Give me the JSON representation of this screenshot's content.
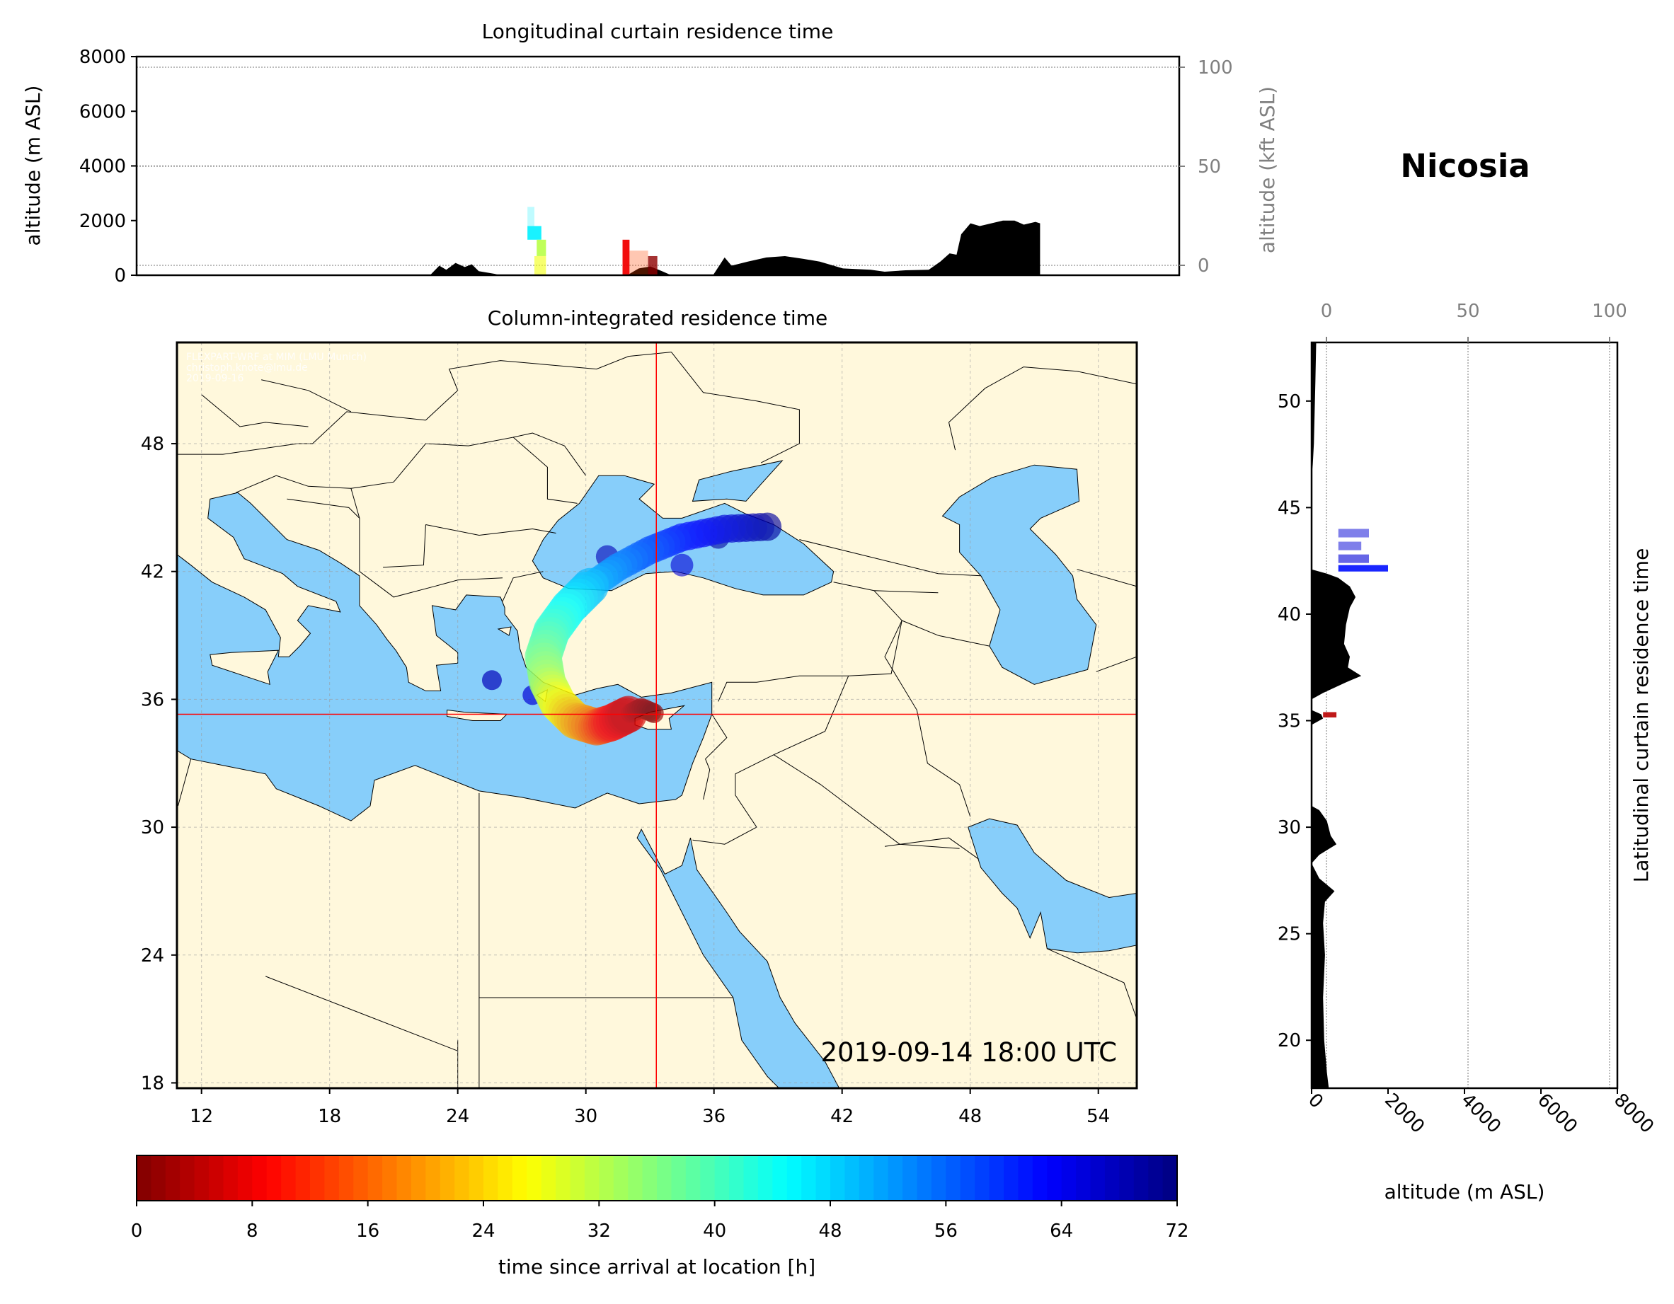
{
  "location": "Nicosia",
  "watermark": [
    "FLEXPART-WRF at MIM (LMU Munich)",
    "christoph.knote@lmu.de",
    "2019-09-16"
  ],
  "colors": {
    "land": "#fff8dc",
    "sea": "#87cefa",
    "terrain": "#000000",
    "crosshair": "#ff0000",
    "grid": "#9a9a9a"
  },
  "chart_data": [
    {
      "id": "longitudinal",
      "type": "area",
      "title": "Longitudinal curtain residence time",
      "ylabel": "altitude (m ASL)",
      "y2label": "altitude (kft ASL)",
      "ylim": [
        0,
        8000
      ],
      "yticks": [
        "0",
        "2000",
        "4000",
        "6000",
        "8000"
      ],
      "y2ticks": [
        "0",
        "50",
        "100"
      ],
      "terrain_lon_alt": [
        [
          23.5,
          0
        ],
        [
          23.9,
          350
        ],
        [
          24.2,
          200
        ],
        [
          24.6,
          450
        ],
        [
          25.0,
          300
        ],
        [
          25.3,
          400
        ],
        [
          25.6,
          150
        ],
        [
          26.3,
          50
        ],
        [
          26.5,
          0
        ],
        [
          32.0,
          0
        ],
        [
          32.5,
          250
        ],
        [
          33.0,
          320
        ],
        [
          33.5,
          150
        ],
        [
          33.9,
          0
        ],
        [
          35.7,
          0
        ],
        [
          36.2,
          650
        ],
        [
          36.5,
          350
        ],
        [
          37.2,
          500
        ],
        [
          38.0,
          650
        ],
        [
          38.8,
          700
        ],
        [
          39.6,
          600
        ],
        [
          40.3,
          500
        ],
        [
          41.3,
          250
        ],
        [
          42.5,
          200
        ],
        [
          43.1,
          130
        ],
        [
          44.0,
          180
        ],
        [
          45.0,
          200
        ],
        [
          45.5,
          500
        ],
        [
          45.9,
          800
        ],
        [
          46.2,
          750
        ],
        [
          46.4,
          1500
        ],
        [
          46.8,
          1900
        ],
        [
          47.2,
          1800
        ],
        [
          47.7,
          1900
        ],
        [
          48.2,
          2000
        ],
        [
          48.7,
          2000
        ],
        [
          49.1,
          1850
        ],
        [
          49.6,
          1950
        ],
        [
          49.8,
          1900
        ],
        [
          49.8,
          0
        ]
      ],
      "residence_bars": [
        {
          "lon": [
            27.7,
            28.0
          ],
          "alt": [
            1800,
            2500
          ],
          "hours": 46,
          "opacity": 0.25
        },
        {
          "lon": [
            27.7,
            28.3
          ],
          "alt": [
            1300,
            1800
          ],
          "hours": 46,
          "opacity": 0.9
        },
        {
          "lon": [
            28.1,
            28.5
          ],
          "alt": [
            700,
            1300
          ],
          "hours": 32,
          "opacity": 0.9
        },
        {
          "lon": [
            28.0,
            28.5
          ],
          "alt": [
            0,
            700
          ],
          "hours": 28,
          "opacity": 0.6
        },
        {
          "lon": [
            31.8,
            32.1
          ],
          "alt": [
            0,
            1300
          ],
          "hours": 8,
          "opacity": 0.95
        },
        {
          "lon": [
            32.1,
            32.9
          ],
          "alt": [
            0,
            900
          ],
          "hours": 14,
          "opacity": 0.3
        },
        {
          "lon": [
            32.9,
            33.3
          ],
          "alt": [
            0,
            700
          ],
          "hours": 1,
          "opacity": 0.8
        }
      ]
    },
    {
      "id": "column",
      "type": "map",
      "title": "Column-integrated residence time",
      "xlim": [
        10.85,
        55.8
      ],
      "ylim": [
        17.75,
        52.75
      ],
      "xticks": [
        "12",
        "18",
        "24",
        "30",
        "36",
        "42",
        "48",
        "54"
      ],
      "yticks": [
        "18",
        "24",
        "30",
        "36",
        "42",
        "48"
      ],
      "crosshair": {
        "lon": 33.3,
        "lat": 35.3
      },
      "timestamp": "2019-09-14 18:00 UTC"
    },
    {
      "id": "latitudinal",
      "type": "area",
      "ylabel": "Latitudinal curtain residence time",
      "xlabel": "altitude (m ASL)",
      "xlim": [
        0,
        8000
      ],
      "xticks": [
        "0",
        "2000",
        "4000",
        "6000",
        "8000"
      ],
      "x2ticks": [
        "0",
        "50",
        "100"
      ],
      "ylim": [
        17.75,
        52.75
      ],
      "yticks": [
        "20",
        "25",
        "30",
        "35",
        "40",
        "45",
        "50"
      ],
      "terrain_lat_alt": [
        [
          52.75,
          120
        ],
        [
          51,
          100
        ],
        [
          49.5,
          80
        ],
        [
          48,
          60
        ],
        [
          47,
          30
        ],
        [
          46.5,
          0
        ],
        [
          42.1,
          0
        ],
        [
          41.9,
          400
        ],
        [
          41.7,
          700
        ],
        [
          41.3,
          1000
        ],
        [
          40.8,
          1150
        ],
        [
          40.3,
          1000
        ],
        [
          39.5,
          900
        ],
        [
          38.6,
          850
        ],
        [
          38,
          1000
        ],
        [
          37.5,
          950
        ],
        [
          37.1,
          1300
        ],
        [
          36.8,
          900
        ],
        [
          36.3,
          300
        ],
        [
          36,
          0
        ],
        [
          35.5,
          0
        ],
        [
          35.3,
          250
        ],
        [
          35.1,
          300
        ],
        [
          34.8,
          0
        ],
        [
          31,
          0
        ],
        [
          30.8,
          200
        ],
        [
          30.3,
          400
        ],
        [
          29.6,
          500
        ],
        [
          29.2,
          650
        ],
        [
          28.7,
          200
        ],
        [
          28.3,
          0
        ],
        [
          27.6,
          200
        ],
        [
          27,
          600
        ],
        [
          26.5,
          350
        ],
        [
          25.5,
          300
        ],
        [
          24,
          350
        ],
        [
          22,
          300
        ],
        [
          20,
          330
        ],
        [
          18.5,
          400
        ],
        [
          17.75,
          450
        ]
      ],
      "residence_bars": [
        {
          "lat": [
            43.6,
            44.0
          ],
          "alt": [
            700,
            1500
          ],
          "hours": 66,
          "opacity": 0.5
        },
        {
          "lat": [
            43.0,
            43.4
          ],
          "alt": [
            700,
            1300
          ],
          "hours": 66,
          "opacity": 0.5
        },
        {
          "lat": [
            42.4,
            42.8
          ],
          "alt": [
            700,
            1500
          ],
          "hours": 66,
          "opacity": 0.6
        },
        {
          "lat": [
            42.0,
            42.3
          ],
          "alt": [
            700,
            2000
          ],
          "hours": 62,
          "opacity": 0.9
        },
        {
          "lat": [
            35.15,
            35.4
          ],
          "alt": [
            300,
            650
          ],
          "hours": 4,
          "opacity": 0.9
        }
      ]
    },
    {
      "id": "colorbar",
      "type": "colorbar",
      "label": "time since arrival at location [h]",
      "range": [
        0,
        72
      ],
      "colormap": "jet",
      "ticks": [
        "0",
        "8",
        "16",
        "24",
        "32",
        "40",
        "48",
        "56",
        "64",
        "72"
      ]
    }
  ]
}
